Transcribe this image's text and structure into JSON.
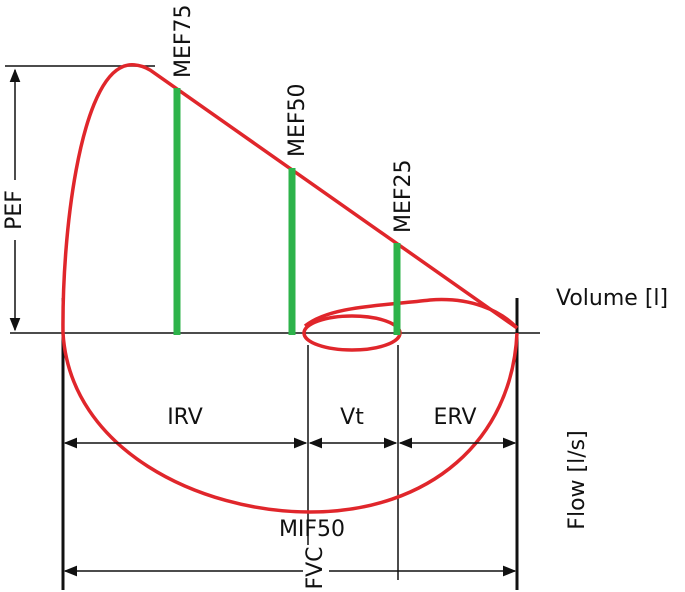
{
  "markers": [
    {
      "label": "MEF75"
    },
    {
      "label": "MEF50"
    },
    {
      "label": "MEF25"
    }
  ],
  "peak_label": "PEF",
  "axes": {
    "x": "Volume [l]",
    "y": "Flow [l/s]"
  },
  "volumes": [
    {
      "label": "IRV"
    },
    {
      "label": "Vt"
    },
    {
      "label": "ERV"
    }
  ],
  "mif_label": "MIF50",
  "total_label": "FVC"
}
